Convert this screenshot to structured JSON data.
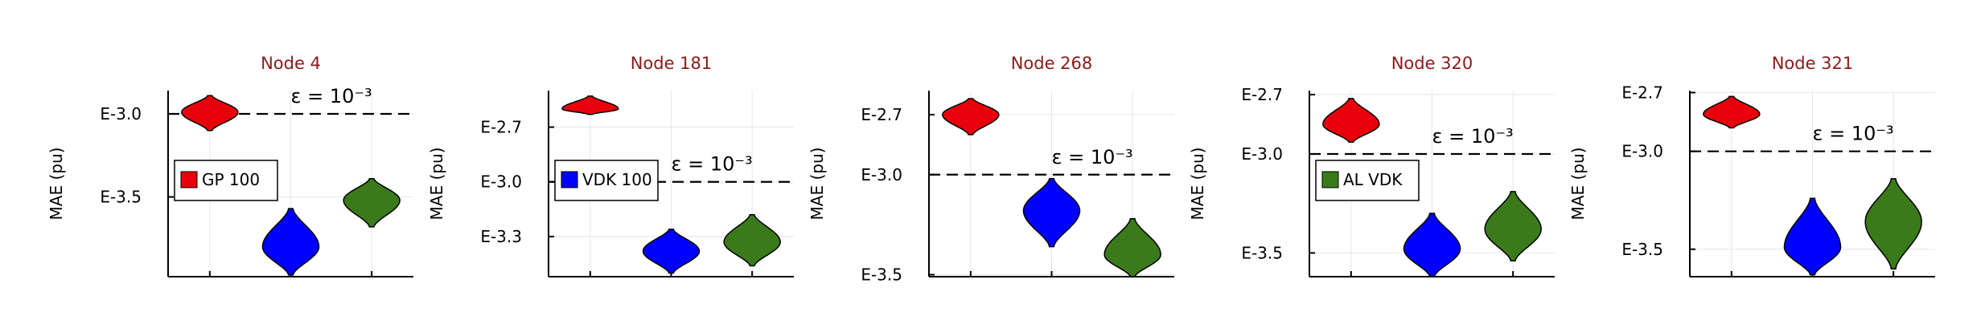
{
  "colors": {
    "gp": "#e8000b",
    "vdk": "#0000ff",
    "alvdk": "#3a7a1a",
    "title": "#8b1a1a",
    "axis": "#000000",
    "grid": "#e6e6e6"
  },
  "chart_data": [
    {
      "type": "violin",
      "title": "Node 4",
      "ylabel": "MAE (pu)",
      "xlabel": "",
      "ylim": [
        -3.98,
        -2.86
      ],
      "yticks": [
        {
          "value": -3.0,
          "label": "E-3.0"
        },
        {
          "value": -3.5,
          "label": "E-3.5"
        }
      ],
      "threshold": {
        "value": -3.0,
        "label": "ε = 10⁻³"
      },
      "legend": {
        "label": "GP 100",
        "color": "#e8000b",
        "position": "middle-left"
      },
      "grid": true,
      "series": [
        {
          "color": "#e8000b",
          "min": -3.1,
          "max": -2.89,
          "median": -2.99
        },
        {
          "color": "#0000ff",
          "min": -3.97,
          "max": -3.57,
          "median": -3.8
        },
        {
          "color": "#3a7a1a",
          "min": -3.68,
          "max": -3.39,
          "median": -3.52
        }
      ]
    },
    {
      "type": "violin",
      "title": "Node 181",
      "ylabel": "MAE (pu)",
      "xlabel": "",
      "ylim": [
        -3.52,
        -2.5
      ],
      "yticks": [
        {
          "value": -2.7,
          "label": "E-2.7"
        },
        {
          "value": -3.0,
          "label": "E-3.0"
        },
        {
          "value": -3.3,
          "label": "E-3.3"
        }
      ],
      "threshold": {
        "value": -3.0,
        "label": "ε = 10⁻³"
      },
      "legend": {
        "label": "VDK 100",
        "color": "#0000ff",
        "position": "middle-left"
      },
      "grid": true,
      "series": [
        {
          "color": "#e8000b",
          "min": -2.63,
          "max": -2.53,
          "median": -2.6
        },
        {
          "color": "#0000ff",
          "min": -3.5,
          "max": -3.26,
          "median": -3.38
        },
        {
          "color": "#3a7a1a",
          "min": -3.46,
          "max": -3.18,
          "median": -3.33
        }
      ]
    },
    {
      "type": "violin",
      "title": "Node 268",
      "ylabel": "MAE (pu)",
      "xlabel": "",
      "ylim": [
        -3.51,
        -2.58
      ],
      "yticks": [
        {
          "value": -2.7,
          "label": "E-2.7"
        },
        {
          "value": -3.0,
          "label": "E-3.0"
        },
        {
          "value": -3.5,
          "label": "E-3.5"
        }
      ],
      "threshold": {
        "value": -3.0,
        "label": "ε = 10⁻³"
      },
      "legend": null,
      "grid": true,
      "series": [
        {
          "color": "#e8000b",
          "min": -2.8,
          "max": -2.62,
          "median": -2.7
        },
        {
          "color": "#0000ff",
          "min": -3.36,
          "max": -3.02,
          "median": -3.18
        },
        {
          "color": "#3a7a1a",
          "min": -3.51,
          "max": -3.22,
          "median": -3.4
        }
      ]
    },
    {
      "type": "violin",
      "title": "Node 320",
      "ylabel": "MAE (pu)",
      "xlabel": "",
      "ylim": [
        -3.62,
        -2.68
      ],
      "yticks": [
        {
          "value": -2.7,
          "label": "E-2.7"
        },
        {
          "value": -3.0,
          "label": "E-3.0"
        },
        {
          "value": -3.5,
          "label": "E-3.5"
        }
      ],
      "threshold": {
        "value": -3.0,
        "label": "ε = 10⁻³"
      },
      "legend": {
        "label": "AL VDK",
        "color": "#3a7a1a",
        "position": "middle-left"
      },
      "grid": true,
      "series": [
        {
          "color": "#e8000b",
          "min": -2.94,
          "max": -2.72,
          "median": -2.85
        },
        {
          "color": "#0000ff",
          "min": -3.62,
          "max": -3.3,
          "median": -3.48
        },
        {
          "color": "#3a7a1a",
          "min": -3.54,
          "max": -3.19,
          "median": -3.38
        }
      ]
    },
    {
      "type": "violin",
      "title": "Node 321",
      "ylabel": "MAE (pu)",
      "xlabel": "",
      "ylim": [
        -3.64,
        -2.69
      ],
      "yticks": [
        {
          "value": -2.7,
          "label": "E-2.7"
        },
        {
          "value": -3.0,
          "label": "E-3.0"
        },
        {
          "value": -3.5,
          "label": "E-3.5"
        }
      ],
      "threshold": {
        "value": -3.0,
        "label": "ε = 10⁻³"
      },
      "legend": null,
      "grid": true,
      "series": [
        {
          "color": "#e8000b",
          "min": -2.88,
          "max": -2.72,
          "median": -2.81
        },
        {
          "color": "#0000ff",
          "min": -3.63,
          "max": -3.24,
          "median": -3.49
        },
        {
          "color": "#3a7a1a",
          "min": -3.6,
          "max": -3.14,
          "median": -3.36
        }
      ]
    }
  ]
}
